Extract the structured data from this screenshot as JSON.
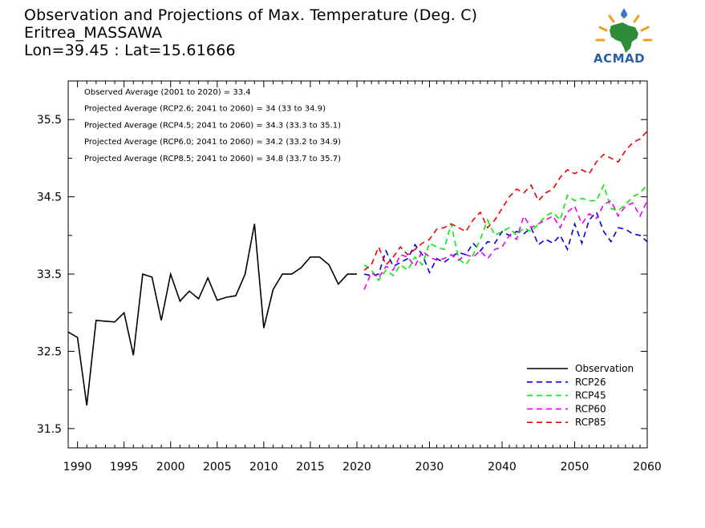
{
  "title": {
    "line1": "Observation and Projections of Max. Temperature (Deg. C)",
    "line2": "Eritrea_MASSAWA",
    "line3": "Lon=39.45 : Lat=15.61666"
  },
  "logo": {
    "text": "ACMAD",
    "icon": "africa-sun-logo-icon",
    "color": "#2a5fa8"
  },
  "chart_data": {
    "type": "line",
    "xlim": [
      1989,
      2060
    ],
    "ylim": [
      31.25,
      36.0
    ],
    "x_ticks": [
      1990,
      1995,
      2000,
      2005,
      2010,
      2015,
      2020,
      2030,
      2040,
      2050,
      2060
    ],
    "y_ticks": [
      31.5,
      32.5,
      33.5,
      34.5,
      35.5
    ],
    "annotations": [
      "Observed Average (2001 to 2020) = 33.4",
      "Projected Average (RCP2.6; 2041 to 2060) = 34 (33 to 34.9)",
      "Projected Average (RCP4.5; 2041 to 2060) = 34.3 (33.3 to 35.1)",
      "Projected Average (RCP6.0; 2041 to 2060) = 34.2 (33.2 to 34.9)",
      "Projected Average (RCP8.5; 2041 to 2060) = 34.8 (33.7 to 35.7)"
    ],
    "legend_position": "bottom-right",
    "series": [
      {
        "name": "Observation",
        "color": "#000000",
        "style": "solid",
        "x": [
          1989,
          1990,
          1991,
          1992,
          1993,
          1994,
          1995,
          1996,
          1997,
          1998,
          1999,
          2000,
          2001,
          2002,
          2003,
          2004,
          2005,
          2006,
          2007,
          2008,
          2009,
          2010,
          2011,
          2012,
          2013,
          2014,
          2015,
          2016,
          2017,
          2018,
          2019,
          2020
        ],
        "y": [
          32.75,
          32.68,
          31.8,
          32.9,
          32.89,
          32.88,
          33.0,
          32.45,
          33.5,
          33.46,
          32.9,
          33.5,
          33.15,
          33.28,
          33.18,
          33.45,
          33.16,
          33.2,
          33.22,
          33.5,
          34.15,
          32.8,
          33.3,
          33.5,
          33.5,
          33.58,
          33.72,
          33.72,
          33.62,
          33.37,
          33.5,
          33.5
        ]
      },
      {
        "name": "RCP26",
        "color": "#0000dd",
        "style": "dashed",
        "x": [
          2021,
          2022,
          2023,
          2024,
          2025,
          2026,
          2027,
          2028,
          2029,
          2030,
          2031,
          2032,
          2033,
          2034,
          2035,
          2036,
          2037,
          2038,
          2039,
          2040,
          2041,
          2042,
          2043,
          2044,
          2045,
          2046,
          2047,
          2048,
          2049,
          2050,
          2051,
          2052,
          2053,
          2054,
          2055,
          2056,
          2057,
          2058,
          2059,
          2060
        ],
        "y": [
          33.5,
          33.48,
          33.5,
          33.8,
          33.6,
          33.65,
          33.7,
          33.88,
          33.75,
          33.52,
          33.7,
          33.65,
          33.72,
          33.78,
          33.75,
          33.9,
          33.8,
          33.92,
          33.9,
          34.05,
          34.0,
          34.05,
          34.02,
          34.1,
          33.88,
          33.95,
          33.9,
          34.0,
          33.82,
          34.15,
          33.9,
          34.2,
          34.3,
          34.05,
          33.92,
          34.1,
          34.08,
          34.02,
          34.0,
          33.92
        ]
      },
      {
        "name": "RCP45",
        "color": "#00ee00",
        "style": "dashed",
        "x": [
          2021,
          2022,
          2023,
          2024,
          2025,
          2026,
          2027,
          2028,
          2029,
          2030,
          2031,
          2032,
          2033,
          2034,
          2035,
          2036,
          2037,
          2038,
          2039,
          2040,
          2041,
          2042,
          2043,
          2044,
          2045,
          2046,
          2047,
          2048,
          2049,
          2050,
          2051,
          2052,
          2053,
          2054,
          2055,
          2056,
          2057,
          2058,
          2059,
          2060
        ],
        "y": [
          33.62,
          33.55,
          33.42,
          33.55,
          33.48,
          33.62,
          33.55,
          33.72,
          33.62,
          33.9,
          33.85,
          33.82,
          34.15,
          33.7,
          33.62,
          33.75,
          33.95,
          34.2,
          34.0,
          34.05,
          34.1,
          34.0,
          34.1,
          34.05,
          34.15,
          34.25,
          34.3,
          34.2,
          34.52,
          34.45,
          34.48,
          34.45,
          34.45,
          34.65,
          34.35,
          34.32,
          34.4,
          34.5,
          34.55,
          34.65
        ]
      },
      {
        "name": "RCP60",
        "color": "#ee00ee",
        "style": "dashed",
        "x": [
          2021,
          2022,
          2023,
          2024,
          2025,
          2026,
          2027,
          2028,
          2029,
          2030,
          2031,
          2032,
          2033,
          2034,
          2035,
          2036,
          2037,
          2038,
          2039,
          2040,
          2041,
          2042,
          2043,
          2044,
          2045,
          2046,
          2047,
          2048,
          2049,
          2050,
          2051,
          2052,
          2053,
          2054,
          2055,
          2056,
          2057,
          2058,
          2059,
          2060
        ],
        "y": [
          33.3,
          33.52,
          33.45,
          33.6,
          33.55,
          33.75,
          33.72,
          33.6,
          33.8,
          33.72,
          33.68,
          33.7,
          33.75,
          33.68,
          33.75,
          33.72,
          33.8,
          33.7,
          33.82,
          33.85,
          34.0,
          33.95,
          34.25,
          34.1,
          34.15,
          34.2,
          34.25,
          34.1,
          34.3,
          34.38,
          34.15,
          34.28,
          34.22,
          34.4,
          34.45,
          34.25,
          34.38,
          34.42,
          34.25,
          34.45
        ]
      },
      {
        "name": "RCP85",
        "color": "#ee0000",
        "style": "dashed",
        "x": [
          2021,
          2022,
          2023,
          2024,
          2025,
          2026,
          2027,
          2028,
          2029,
          2030,
          2031,
          2032,
          2033,
          2034,
          2035,
          2036,
          2037,
          2038,
          2039,
          2040,
          2041,
          2042,
          2043,
          2044,
          2045,
          2046,
          2047,
          2048,
          2049,
          2050,
          2051,
          2052,
          2053,
          2054,
          2055,
          2056,
          2057,
          2058,
          2059,
          2060
        ],
        "y": [
          33.55,
          33.62,
          33.85,
          33.62,
          33.72,
          33.85,
          33.75,
          33.82,
          33.9,
          33.95,
          34.08,
          34.1,
          34.15,
          34.1,
          34.05,
          34.2,
          34.3,
          34.1,
          34.2,
          34.35,
          34.5,
          34.6,
          34.55,
          34.65,
          34.45,
          34.55,
          34.6,
          34.75,
          34.85,
          34.8,
          34.85,
          34.8,
          34.95,
          35.05,
          35.0,
          34.95,
          35.1,
          35.2,
          35.25,
          35.35
        ]
      }
    ]
  }
}
